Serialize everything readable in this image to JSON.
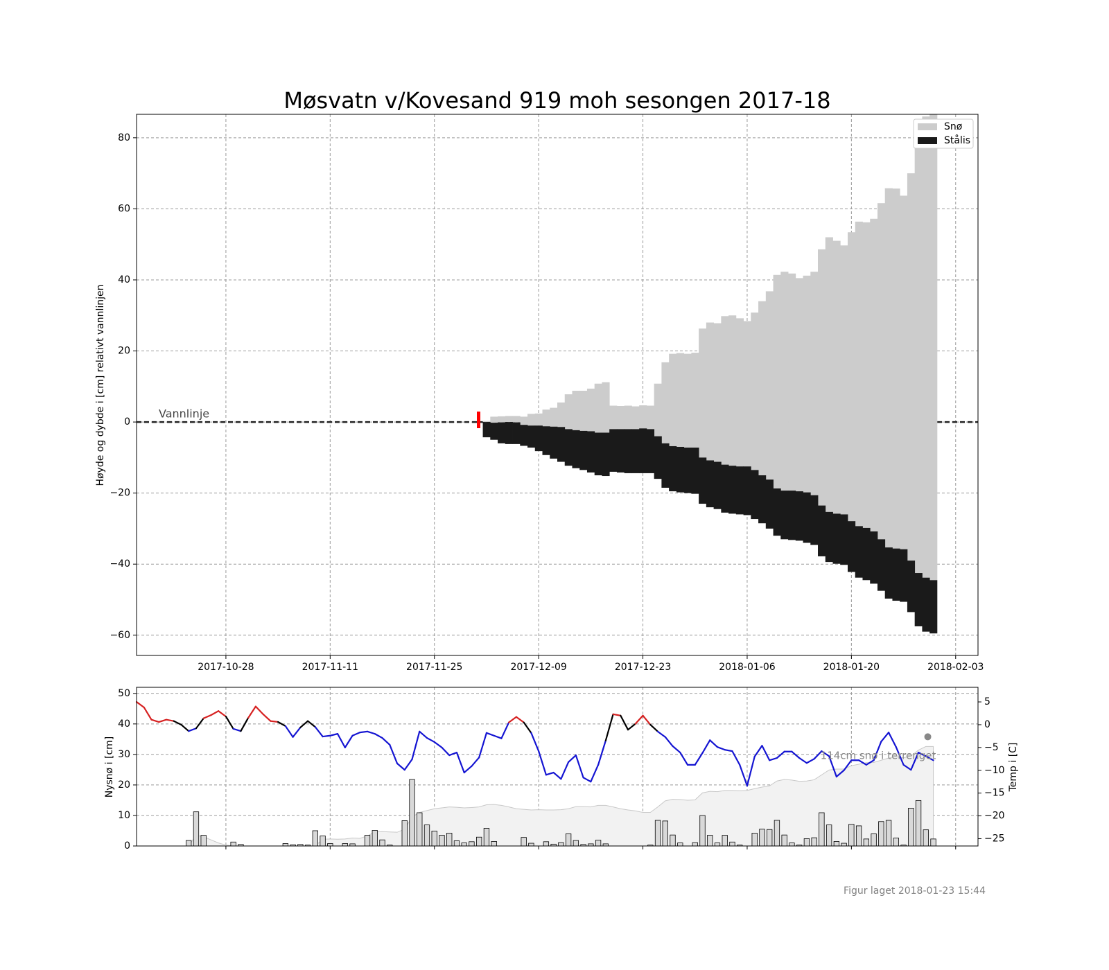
{
  "footer": "Figur laget 2018-01-23 15:44",
  "chart_data": [
    {
      "type": "range_bar",
      "title": "Møsvatn v/Kovesand  919 moh sesongen 2017-18",
      "ylabel": "Høyde og dybde i [cm] relativt vannlinjen",
      "annotations": [
        {
          "text": "Vannlinje",
          "y": 0
        }
      ],
      "xlim": [
        "2017-10-16",
        "2018-02-06"
      ],
      "xticks": [
        "2017-10-28",
        "2017-11-11",
        "2017-11-25",
        "2017-12-09",
        "2017-12-23",
        "2018-01-06",
        "2018-01-20",
        "2018-02-03"
      ],
      "ylim": [
        -65.7,
        86.6
      ],
      "yticks": [
        {
          "value": -60,
          "label": "−60"
        },
        {
          "value": -40,
          "label": "−40"
        },
        {
          "value": -20,
          "label": "−20"
        },
        0,
        20,
        40,
        60,
        80
      ],
      "grid": true,
      "legend": "upper right",
      "x": [
        "2017-12-02",
        "2017-12-03",
        "2017-12-04",
        "2017-12-05",
        "2017-12-06",
        "2017-12-07",
        "2017-12-08",
        "2017-12-09",
        "2017-12-10",
        "2017-12-11",
        "2017-12-12",
        "2017-12-13",
        "2017-12-14",
        "2017-12-15",
        "2017-12-16",
        "2017-12-17",
        "2017-12-18",
        "2017-12-19",
        "2017-12-20",
        "2017-12-21",
        "2017-12-22",
        "2017-12-23",
        "2017-12-24",
        "2017-12-25",
        "2017-12-26",
        "2017-12-27",
        "2017-12-28",
        "2017-12-29",
        "2017-12-30",
        "2017-12-31",
        "2018-01-01",
        "2018-01-02",
        "2018-01-03",
        "2018-01-04",
        "2018-01-05",
        "2018-01-06",
        "2018-01-07",
        "2018-01-08",
        "2018-01-09",
        "2018-01-10",
        "2018-01-11",
        "2018-01-12",
        "2018-01-13",
        "2018-01-14",
        "2018-01-15",
        "2018-01-16",
        "2018-01-17",
        "2018-01-18",
        "2018-01-19",
        "2018-01-20",
        "2018-01-21",
        "2018-01-22",
        "2018-01-23",
        "2018-01-24",
        "2018-01-25",
        "2018-01-26",
        "2018-01-27",
        "2018-01-28",
        "2018-01-29",
        "2018-01-30",
        "2018-01-31"
      ],
      "series": [
        {
          "name": "Snø",
          "color": "#cccccc",
          "values": [
            [
              0,
              0.3
            ],
            [
              -0.2,
              1.5
            ],
            [
              -0.1,
              1.6
            ],
            [
              0,
              1.7
            ],
            [
              -0.1,
              1.7
            ],
            [
              -0.8,
              1.5
            ],
            [
              -1,
              2.3
            ],
            [
              -1,
              2.4
            ],
            [
              -1.2,
              3.5
            ],
            [
              -1.3,
              4
            ],
            [
              -1.4,
              5.5
            ],
            [
              -2,
              7.8
            ],
            [
              -2.3,
              8.8
            ],
            [
              -2.5,
              8.8
            ],
            [
              -2.6,
              9.4
            ],
            [
              -3,
              10.8
            ],
            [
              -3,
              11.2
            ],
            [
              -2,
              4.6
            ],
            [
              -2,
              4.5
            ],
            [
              -2,
              4.6
            ],
            [
              -2,
              4.4
            ],
            [
              -1.8,
              4.7
            ],
            [
              -2,
              4.6
            ],
            [
              -4,
              10.8
            ],
            [
              -6,
              16.8
            ],
            [
              -6.8,
              19.2
            ],
            [
              -7,
              19.4
            ],
            [
              -7.2,
              19.2
            ],
            [
              -7.2,
              19.5
            ],
            [
              -10,
              26.3
            ],
            [
              -10.8,
              28
            ],
            [
              -11.2,
              27.8
            ],
            [
              -12,
              29.8
            ],
            [
              -12.3,
              30
            ],
            [
              -12.5,
              29.2
            ],
            [
              -12.5,
              28.4
            ],
            [
              -13.5,
              30.8
            ],
            [
              -15,
              34
            ],
            [
              -16.2,
              36.8
            ],
            [
              -18.7,
              41.4
            ],
            [
              -19.3,
              42.3
            ],
            [
              -19.3,
              41.8
            ],
            [
              -19.5,
              40.5
            ],
            [
              -19.8,
              41.2
            ],
            [
              -20.6,
              42.3
            ],
            [
              -23.5,
              48.6
            ],
            [
              -25.3,
              52
            ],
            [
              -25.8,
              51
            ],
            [
              -26,
              49.7
            ],
            [
              -27.9,
              53.4
            ],
            [
              -29.3,
              56.4
            ],
            [
              -29.8,
              56.2
            ],
            [
              -30.8,
              57.2
            ],
            [
              -33,
              61.6
            ],
            [
              -35.3,
              65.8
            ],
            [
              -35.6,
              65.7
            ],
            [
              -35.8,
              63.7
            ],
            [
              -39,
              70
            ],
            [
              -42.5,
              80
            ],
            [
              -43.8,
              86
            ],
            [
              -44.5,
              90
            ]
          ]
        },
        {
          "name": "Stålis",
          "color": "#1a1a1a",
          "values": [
            [
              -4.3,
              0
            ],
            [
              -5,
              -0.2
            ],
            [
              -6,
              -0.1
            ],
            [
              -6.2,
              0
            ],
            [
              -6.2,
              -0.1
            ],
            [
              -6.7,
              -0.8
            ],
            [
              -7.2,
              -1
            ],
            [
              -8.2,
              -1
            ],
            [
              -9.3,
              -1.2
            ],
            [
              -10.3,
              -1.3
            ],
            [
              -11.2,
              -1.4
            ],
            [
              -12.3,
              -2
            ],
            [
              -13,
              -2.3
            ],
            [
              -13.5,
              -2.5
            ],
            [
              -14.2,
              -2.6
            ],
            [
              -15,
              -3
            ],
            [
              -15.2,
              -3
            ],
            [
              -14,
              -2
            ],
            [
              -14.2,
              -2
            ],
            [
              -14.4,
              -2
            ],
            [
              -14.4,
              -2
            ],
            [
              -14.4,
              -1.8
            ],
            [
              -14.4,
              -2
            ],
            [
              -16,
              -4
            ],
            [
              -18.5,
              -6
            ],
            [
              -19.5,
              -6.8
            ],
            [
              -19.8,
              -7
            ],
            [
              -20,
              -7.2
            ],
            [
              -20.2,
              -7.2
            ],
            [
              -23,
              -10
            ],
            [
              -24,
              -10.8
            ],
            [
              -24.5,
              -11.2
            ],
            [
              -25.5,
              -12
            ],
            [
              -25.8,
              -12.3
            ],
            [
              -26,
              -12.5
            ],
            [
              -26.2,
              -12.5
            ],
            [
              -27.3,
              -13.5
            ],
            [
              -28.5,
              -15
            ],
            [
              -30,
              -16.2
            ],
            [
              -32,
              -18.7
            ],
            [
              -33,
              -19.3
            ],
            [
              -33.2,
              -19.3
            ],
            [
              -33.4,
              -19.5
            ],
            [
              -34,
              -19.8
            ],
            [
              -34.6,
              -20.6
            ],
            [
              -37.8,
              -23.5
            ],
            [
              -39.4,
              -25.3
            ],
            [
              -39.9,
              -25.8
            ],
            [
              -40.2,
              -26
            ],
            [
              -42.2,
              -27.9
            ],
            [
              -43.8,
              -29.3
            ],
            [
              -44.5,
              -29.8
            ],
            [
              -45.5,
              -30.8
            ],
            [
              -47.5,
              -33
            ],
            [
              -49.7,
              -35.3
            ],
            [
              -50.3,
              -35.6
            ],
            [
              -50.6,
              -35.8
            ],
            [
              -53.5,
              -39
            ],
            [
              -57.5,
              -42.5
            ],
            [
              -59,
              -43.8
            ],
            [
              -59.5,
              -44.5
            ]
          ]
        }
      ]
    },
    {
      "type": "bar_line",
      "ylabel": "Nysnø i [cm]",
      "y2label": "Temp i [C]",
      "annotation": "114cm snø i terrenget",
      "xlim": [
        "2017-10-16",
        "2018-02-06"
      ],
      "xticks": [
        "2017-10-28",
        "2017-11-11",
        "2017-11-25",
        "2017-12-09",
        "2017-12-23",
        "2018-01-06",
        "2018-01-20",
        "2018-02-03"
      ],
      "ylim": [
        0,
        52
      ],
      "yticks": [
        0,
        10,
        20,
        30,
        40,
        50
      ],
      "y2lim": [
        -26.6,
        8.2
      ],
      "y2ticks": [
        {
          "value": -25,
          "label": "−25"
        },
        {
          "value": -20,
          "label": "−20"
        },
        {
          "value": -15,
          "label": "−15"
        },
        {
          "value": -10,
          "label": "−10"
        },
        {
          "value": -5,
          "label": "−5"
        },
        0,
        5
      ],
      "grid": true,
      "x": [
        "2017-10-16",
        "2017-10-17",
        "2017-10-18",
        "2017-10-19",
        "2017-10-20",
        "2017-10-21",
        "2017-10-22",
        "2017-10-23",
        "2017-10-24",
        "2017-10-25",
        "2017-10-26",
        "2017-10-27",
        "2017-10-28",
        "2017-10-29",
        "2017-10-30",
        "2017-10-31",
        "2017-11-01",
        "2017-11-02",
        "2017-11-03",
        "2017-11-04",
        "2017-11-05",
        "2017-11-06",
        "2017-11-07",
        "2017-11-08",
        "2017-11-09",
        "2017-11-10",
        "2017-11-11",
        "2017-11-12",
        "2017-11-13",
        "2017-11-14",
        "2017-11-15",
        "2017-11-16",
        "2017-11-17",
        "2017-11-18",
        "2017-11-19",
        "2017-11-20",
        "2017-11-21",
        "2017-11-22",
        "2017-11-23",
        "2017-11-24",
        "2017-11-25",
        "2017-11-26",
        "2017-11-27",
        "2017-11-28",
        "2017-11-29",
        "2017-11-30",
        "2017-12-01",
        "2017-12-02",
        "2017-12-03",
        "2017-12-04",
        "2017-12-05",
        "2017-12-06",
        "2017-12-07",
        "2017-12-08",
        "2017-12-09",
        "2017-12-10",
        "2017-12-11",
        "2017-12-12",
        "2017-12-13",
        "2017-12-14",
        "2017-12-15",
        "2017-12-16",
        "2017-12-17",
        "2017-12-18",
        "2017-12-19",
        "2017-12-20",
        "2017-12-21",
        "2017-12-22",
        "2017-12-23",
        "2017-12-24",
        "2017-12-25",
        "2017-12-26",
        "2017-12-27",
        "2017-12-28",
        "2017-12-29",
        "2017-12-30",
        "2017-12-31",
        "2018-01-01",
        "2018-01-02",
        "2018-01-03",
        "2018-01-04",
        "2018-01-05",
        "2018-01-06",
        "2018-01-07",
        "2018-01-08",
        "2018-01-09",
        "2018-01-10",
        "2018-01-11",
        "2018-01-12",
        "2018-01-13",
        "2018-01-14",
        "2018-01-15",
        "2018-01-16",
        "2018-01-17",
        "2018-01-18",
        "2018-01-19",
        "2018-01-20",
        "2018-01-21",
        "2018-01-22",
        "2018-01-23",
        "2018-01-24",
        "2018-01-25",
        "2018-01-26",
        "2018-01-27",
        "2018-01-28",
        "2018-01-29",
        "2018-01-30",
        "2018-01-31"
      ],
      "new_snow": {
        "color": "#d9d9d9",
        "values": [
          null,
          null,
          null,
          null,
          null,
          null,
          null,
          1.8,
          11.2,
          3.5,
          null,
          null,
          null,
          1.3,
          0.5,
          null,
          null,
          null,
          null,
          null,
          0.8,
          0.4,
          0.5,
          0.3,
          5,
          3.3,
          0.8,
          null,
          0.8,
          0.7,
          null,
          3.5,
          5.1,
          2,
          0.3,
          null,
          8.3,
          21.8,
          10.9,
          6.9,
          4.9,
          3.5,
          4.2,
          1.7,
          1,
          1.4,
          2.9,
          5.8,
          1.5,
          null,
          null,
          null,
          2.8,
          0.9,
          null,
          1.4,
          0.6,
          1.1,
          4,
          1.8,
          0.5,
          0.7,
          1.9,
          0.7,
          null,
          null,
          null,
          null,
          null,
          0.3,
          8.4,
          8.2,
          3.6,
          1,
          null,
          1.1,
          10,
          3.5,
          1,
          3.5,
          1.3,
          0.3,
          null,
          4.2,
          5.5,
          5.4,
          8.4,
          3.6,
          1,
          0.3,
          2.4,
          2.7,
          10.9,
          6.9,
          1.5,
          0.9,
          7.1,
          6.6,
          2.3,
          4,
          8,
          8.4,
          2.6,
          0.3,
          12.4,
          14.9,
          5.3,
          2.3
        ]
      },
      "snow_depth": {
        "color": "#f2f2f2",
        "values": [
          null,
          null,
          null,
          null,
          null,
          null,
          null,
          0,
          3.5,
          3,
          2,
          1,
          0.3,
          0,
          0,
          0,
          0,
          0,
          0,
          0,
          0,
          0,
          0,
          0,
          0,
          2.2,
          2.3,
          2.2,
          2.3,
          2.6,
          2.5,
          3.3,
          4.6,
          4.7,
          4.6,
          4.5,
          5.5,
          9.5,
          11,
          11.6,
          12.2,
          12.5,
          12.8,
          12.7,
          12.5,
          12.6,
          12.8,
          13.5,
          13.6,
          13.3,
          12.8,
          12.2,
          12,
          11.8,
          11.9,
          11.8,
          11.8,
          11.9,
          12.2,
          12.9,
          12.9,
          12.8,
          13.3,
          13.3,
          12.8,
          12.2,
          11.8,
          11.5,
          11,
          11,
          12.8,
          14.8,
          15.3,
          15.2,
          15,
          15.1,
          17.4,
          17.9,
          17.8,
          18.2,
          18.2,
          18.1,
          18.2,
          18.8,
          19.3,
          19.7,
          21.3,
          21.8,
          21.6,
          21.2,
          21.3,
          21.7,
          23.3,
          24.9,
          25.2,
          25.2,
          26.3,
          26.8,
          27.3,
          27.4,
          28.1,
          28.8,
          29.3,
          28.9,
          29.5,
          31.4,
          32.6,
          32.6
        ]
      },
      "temperature": {
        "axis": "y2",
        "colors": {
          "warm": "#d62020",
          "zero": "#000000",
          "cold": "#1414d2"
        },
        "values": [
          5,
          3.8,
          1.1,
          0.6,
          1.1,
          0.8,
          0,
          -1.4,
          -0.8,
          1.4,
          2.1,
          3,
          1.8,
          -0.9,
          -1.4,
          1.5,
          4,
          2.3,
          0.8,
          0.6,
          -0.3,
          -2.7,
          -0.6,
          0.8,
          -0.5,
          -2.6,
          -2.4,
          -2,
          -5,
          -2.4,
          -1.7,
          -1.5,
          -2,
          -2.9,
          -4.4,
          -8.5,
          -9.9,
          -7.6,
          -1.5,
          -2.9,
          -3.8,
          -5,
          -6.7,
          -6.1,
          -10.5,
          -9.1,
          -7.2,
          -1.8,
          -2.4,
          -3,
          0.5,
          1.7,
          0.5,
          -1.8,
          -5.8,
          -11,
          -10.5,
          -11.9,
          -8.2,
          -6.7,
          -11.6,
          -12.5,
          -8.8,
          -3.5,
          2.3,
          2,
          -1.1,
          0.2,
          2,
          0,
          -1.5,
          -2.7,
          -4.7,
          -6.1,
          -8.8,
          -8.8,
          -6.2,
          -3.4,
          -4.9,
          -5.5,
          -5.8,
          -8.8,
          -13.4,
          -7,
          -4.6,
          -7.8,
          -7.3,
          -5.9,
          -5.9,
          -7.3,
          -8.4,
          -7.5,
          -5.8,
          -6.9,
          -11.4,
          -10,
          -7.8,
          -7.8,
          -8.8,
          -7.8,
          -3.7,
          -1.7,
          -4.9,
          -8.8,
          -9.9,
          -6.1,
          -6.9,
          -7.8
        ]
      }
    }
  ]
}
